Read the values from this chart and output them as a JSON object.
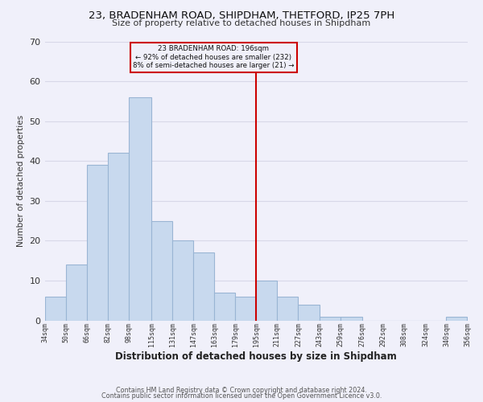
{
  "title": "23, BRADENHAM ROAD, SHIPDHAM, THETFORD, IP25 7PH",
  "subtitle": "Size of property relative to detached houses in Shipdham",
  "xlabel": "Distribution of detached houses by size in Shipdham",
  "ylabel": "Number of detached properties",
  "bar_edges": [
    34,
    50,
    66,
    82,
    98,
    115,
    131,
    147,
    163,
    179,
    195,
    211,
    227,
    243,
    259,
    276,
    292,
    308,
    324,
    340,
    356
  ],
  "bar_heights": [
    6,
    14,
    39,
    42,
    56,
    25,
    20,
    17,
    7,
    6,
    10,
    6,
    4,
    1,
    1,
    0,
    0,
    0,
    0,
    1
  ],
  "bar_color": "#c8d9ee",
  "bar_edgecolor": "#9ab5d4",
  "vline_x": 195,
  "vline_color": "#cc0000",
  "annotation_title": "23 BRADENHAM ROAD: 196sqm",
  "annotation_line1": "← 92% of detached houses are smaller (232)",
  "annotation_line2": "8% of semi-detached houses are larger (21) →",
  "annotation_box_edgecolor": "#cc0000",
  "tick_labels": [
    "34sqm",
    "50sqm",
    "66sqm",
    "82sqm",
    "98sqm",
    "115sqm",
    "131sqm",
    "147sqm",
    "163sqm",
    "179sqm",
    "195sqm",
    "211sqm",
    "227sqm",
    "243sqm",
    "259sqm",
    "276sqm",
    "292sqm",
    "308sqm",
    "324sqm",
    "340sqm",
    "356sqm"
  ],
  "ylim": [
    0,
    70
  ],
  "yticks": [
    0,
    10,
    20,
    30,
    40,
    50,
    60,
    70
  ],
  "grid_color": "#d8d8e8",
  "bg_color": "#f0f0fa",
  "plot_bg_color": "#f0f0fa",
  "footer1": "Contains HM Land Registry data © Crown copyright and database right 2024.",
  "footer2": "Contains public sector information licensed under the Open Government Licence v3.0."
}
